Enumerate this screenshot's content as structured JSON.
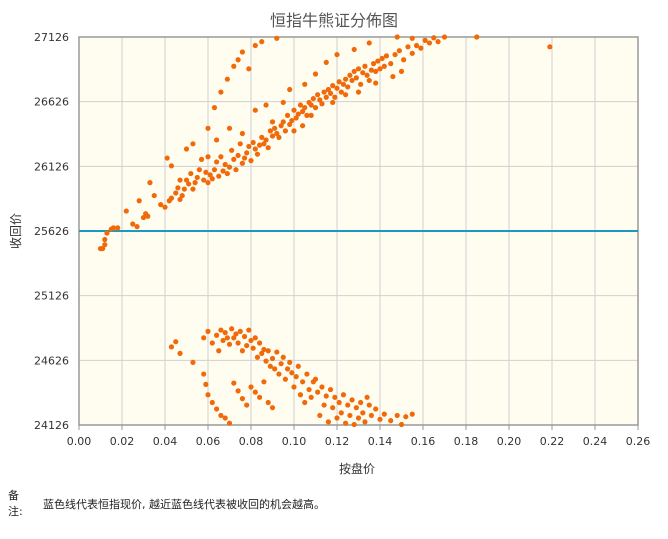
{
  "chart_data": {
    "type": "scatter",
    "title": "恒指牛熊证分佈图",
    "xlabel": "按盘价",
    "ylabel": "收回价",
    "xlim": [
      0.0,
      0.26
    ],
    "ylim": [
      24126,
      27126
    ],
    "x_ticks": [
      "0.00",
      "0.02",
      "0.04",
      "0.06",
      "0.08",
      "0.10",
      "0.12",
      "0.14",
      "0.16",
      "0.18",
      "0.20",
      "0.22",
      "0.24",
      "0.26"
    ],
    "y_ticks": [
      "24126",
      "24626",
      "25126",
      "25626",
      "26126",
      "26626",
      "27126"
    ],
    "grid": true,
    "reference_line": {
      "y": 25626,
      "color": "#1a9ac0"
    },
    "series_color": "#f06a0a",
    "series": [
      {
        "name": "",
        "points": [
          [
            0.01,
            25490
          ],
          [
            0.011,
            25490
          ],
          [
            0.012,
            25520
          ],
          [
            0.012,
            25560
          ],
          [
            0.013,
            25610
          ],
          [
            0.015,
            25640
          ],
          [
            0.016,
            25650
          ],
          [
            0.018,
            25650
          ],
          [
            0.022,
            25780
          ],
          [
            0.025,
            25680
          ],
          [
            0.027,
            25660
          ],
          [
            0.028,
            25860
          ],
          [
            0.03,
            25730
          ],
          [
            0.031,
            25760
          ],
          [
            0.032,
            25740
          ],
          [
            0.033,
            26000
          ],
          [
            0.035,
            25900
          ],
          [
            0.038,
            25830
          ],
          [
            0.04,
            25810
          ],
          [
            0.041,
            26190
          ],
          [
            0.042,
            25860
          ],
          [
            0.043,
            25880
          ],
          [
            0.045,
            25920
          ],
          [
            0.046,
            25960
          ],
          [
            0.047,
            25870
          ],
          [
            0.048,
            25900
          ],
          [
            0.049,
            25950
          ],
          [
            0.05,
            26020
          ],
          [
            0.051,
            25990
          ],
          [
            0.052,
            26070
          ],
          [
            0.053,
            25950
          ],
          [
            0.054,
            26000
          ],
          [
            0.055,
            26040
          ],
          [
            0.056,
            26100
          ],
          [
            0.058,
            26020
          ],
          [
            0.059,
            26080
          ],
          [
            0.06,
            26000
          ],
          [
            0.061,
            26060
          ],
          [
            0.062,
            26030
          ],
          [
            0.063,
            26100
          ],
          [
            0.064,
            26160
          ],
          [
            0.065,
            26050
          ],
          [
            0.066,
            26200
          ],
          [
            0.067,
            26090
          ],
          [
            0.068,
            26140
          ],
          [
            0.069,
            26070
          ],
          [
            0.07,
            26120
          ],
          [
            0.071,
            26250
          ],
          [
            0.072,
            26180
          ],
          [
            0.073,
            26100
          ],
          [
            0.074,
            26210
          ],
          [
            0.075,
            26300
          ],
          [
            0.076,
            26150
          ],
          [
            0.077,
            26190
          ],
          [
            0.078,
            26230
          ],
          [
            0.079,
            26280
          ],
          [
            0.08,
            26170
          ],
          [
            0.081,
            26310
          ],
          [
            0.082,
            26260
          ],
          [
            0.083,
            26220
          ],
          [
            0.084,
            26290
          ],
          [
            0.085,
            26350
          ],
          [
            0.086,
            26300
          ],
          [
            0.087,
            26330
          ],
          [
            0.088,
            26270
          ],
          [
            0.089,
            26400
          ],
          [
            0.09,
            26360
          ],
          [
            0.091,
            26420
          ],
          [
            0.092,
            26380
          ],
          [
            0.093,
            26350
          ],
          [
            0.094,
            26440
          ],
          [
            0.095,
            26470
          ],
          [
            0.096,
            26400
          ],
          [
            0.097,
            26520
          ],
          [
            0.098,
            26450
          ],
          [
            0.099,
            26480
          ],
          [
            0.1,
            26560
          ],
          [
            0.101,
            26500
          ],
          [
            0.102,
            26530
          ],
          [
            0.103,
            26600
          ],
          [
            0.104,
            26550
          ],
          [
            0.105,
            26580
          ],
          [
            0.106,
            26520
          ],
          [
            0.107,
            26620
          ],
          [
            0.108,
            26600
          ],
          [
            0.109,
            26650
          ],
          [
            0.11,
            26580
          ],
          [
            0.111,
            26680
          ],
          [
            0.112,
            26640
          ],
          [
            0.113,
            26610
          ],
          [
            0.114,
            26700
          ],
          [
            0.115,
            26660
          ],
          [
            0.116,
            26720
          ],
          [
            0.117,
            26690
          ],
          [
            0.118,
            26750
          ],
          [
            0.119,
            26660
          ],
          [
            0.12,
            26730
          ],
          [
            0.121,
            26780
          ],
          [
            0.122,
            26700
          ],
          [
            0.123,
            26760
          ],
          [
            0.124,
            26800
          ],
          [
            0.125,
            26740
          ],
          [
            0.126,
            26830
          ],
          [
            0.127,
            26790
          ],
          [
            0.128,
            26860
          ],
          [
            0.129,
            26810
          ],
          [
            0.13,
            26880
          ],
          [
            0.131,
            26760
          ],
          [
            0.132,
            26850
          ],
          [
            0.133,
            26900
          ],
          [
            0.134,
            26830
          ],
          [
            0.135,
            26790
          ],
          [
            0.136,
            26870
          ],
          [
            0.137,
            26920
          ],
          [
            0.138,
            26860
          ],
          [
            0.139,
            26940
          ],
          [
            0.14,
            26880
          ],
          [
            0.141,
            26960
          ],
          [
            0.142,
            26900
          ],
          [
            0.143,
            26980
          ],
          [
            0.145,
            26920
          ],
          [
            0.147,
            26990
          ],
          [
            0.149,
            27020
          ],
          [
            0.151,
            26950
          ],
          [
            0.153,
            27050
          ],
          [
            0.155,
            27000
          ],
          [
            0.157,
            27060
          ],
          [
            0.159,
            27040
          ],
          [
            0.161,
            27100
          ],
          [
            0.163,
            27080
          ],
          [
            0.165,
            27120
          ],
          [
            0.167,
            27090
          ],
          [
            0.17,
            27126
          ],
          [
            0.185,
            27126
          ],
          [
            0.219,
            27050
          ],
          [
            0.043,
            26130
          ],
          [
            0.047,
            26020
          ],
          [
            0.05,
            26260
          ],
          [
            0.053,
            26300
          ],
          [
            0.057,
            26180
          ],
          [
            0.06,
            26420
          ],
          [
            0.063,
            26580
          ],
          [
            0.066,
            26700
          ],
          [
            0.069,
            26800
          ],
          [
            0.072,
            26900
          ],
          [
            0.074,
            26950
          ],
          [
            0.076,
            27010
          ],
          [
            0.079,
            26880
          ],
          [
            0.082,
            27060
          ],
          [
            0.085,
            27090
          ],
          [
            0.092,
            27116
          ],
          [
            0.098,
            26720
          ],
          [
            0.105,
            26760
          ],
          [
            0.11,
            26840
          ],
          [
            0.115,
            26930
          ],
          [
            0.12,
            26990
          ],
          [
            0.128,
            27030
          ],
          [
            0.135,
            27080
          ],
          [
            0.148,
            27126
          ],
          [
            0.155,
            27116
          ],
          [
            0.06,
            26200
          ],
          [
            0.064,
            26330
          ],
          [
            0.07,
            26420
          ],
          [
            0.076,
            26380
          ],
          [
            0.082,
            26560
          ],
          [
            0.087,
            26600
          ],
          [
            0.09,
            26470
          ],
          [
            0.095,
            26620
          ],
          [
            0.1,
            26400
          ],
          [
            0.104,
            26440
          ],
          [
            0.108,
            26520
          ],
          [
            0.118,
            26620
          ],
          [
            0.124,
            26680
          ],
          [
            0.13,
            26700
          ],
          [
            0.138,
            26770
          ],
          [
            0.146,
            26820
          ],
          [
            0.15,
            26860
          ],
          [
            0.043,
            24730
          ],
          [
            0.045,
            24770
          ],
          [
            0.047,
            24680
          ],
          [
            0.053,
            24610
          ],
          [
            0.058,
            24800
          ],
          [
            0.06,
            24850
          ],
          [
            0.062,
            24760
          ],
          [
            0.064,
            24820
          ],
          [
            0.065,
            24700
          ],
          [
            0.066,
            24860
          ],
          [
            0.067,
            24780
          ],
          [
            0.068,
            24840
          ],
          [
            0.069,
            24800
          ],
          [
            0.07,
            24750
          ],
          [
            0.071,
            24870
          ],
          [
            0.072,
            24800
          ],
          [
            0.073,
            24830
          ],
          [
            0.074,
            24760
          ],
          [
            0.075,
            24850
          ],
          [
            0.076,
            24700
          ],
          [
            0.077,
            24810
          ],
          [
            0.078,
            24740
          ],
          [
            0.079,
            24860
          ],
          [
            0.08,
            24780
          ],
          [
            0.081,
            24720
          ],
          [
            0.082,
            24800
          ],
          [
            0.083,
            24650
          ],
          [
            0.084,
            24760
          ],
          [
            0.085,
            24680
          ],
          [
            0.086,
            24710
          ],
          [
            0.087,
            24620
          ],
          [
            0.088,
            24700
          ],
          [
            0.089,
            24580
          ],
          [
            0.09,
            24640
          ],
          [
            0.091,
            24560
          ],
          [
            0.092,
            24690
          ],
          [
            0.093,
            24520
          ],
          [
            0.094,
            24600
          ],
          [
            0.095,
            24650
          ],
          [
            0.096,
            24480
          ],
          [
            0.097,
            24560
          ],
          [
            0.098,
            24610
          ],
          [
            0.099,
            24530
          ],
          [
            0.1,
            24420
          ],
          [
            0.101,
            24500
          ],
          [
            0.102,
            24580
          ],
          [
            0.103,
            24360
          ],
          [
            0.104,
            24460
          ],
          [
            0.105,
            24300
          ],
          [
            0.106,
            24520
          ],
          [
            0.107,
            24400
          ],
          [
            0.108,
            24340
          ],
          [
            0.109,
            24460
          ],
          [
            0.11,
            24480
          ],
          [
            0.111,
            24380
          ],
          [
            0.112,
            24200
          ],
          [
            0.113,
            24420
          ],
          [
            0.114,
            24280
          ],
          [
            0.115,
            24350
          ],
          [
            0.116,
            24150
          ],
          [
            0.117,
            24400
          ],
          [
            0.118,
            24260
          ],
          [
            0.119,
            24340
          ],
          [
            0.12,
            24180
          ],
          [
            0.121,
            24300
          ],
          [
            0.122,
            24220
          ],
          [
            0.123,
            24360
          ],
          [
            0.124,
            24140
          ],
          [
            0.125,
            24280
          ],
          [
            0.126,
            24200
          ],
          [
            0.127,
            24320
          ],
          [
            0.128,
            24130
          ],
          [
            0.129,
            24260
          ],
          [
            0.13,
            24180
          ],
          [
            0.131,
            24300
          ],
          [
            0.132,
            24220
          ],
          [
            0.133,
            24150
          ],
          [
            0.134,
            24340
          ],
          [
            0.135,
            24280
          ],
          [
            0.136,
            24200
          ],
          [
            0.138,
            24250
          ],
          [
            0.14,
            24170
          ],
          [
            0.142,
            24210
          ],
          [
            0.145,
            24160
          ],
          [
            0.148,
            24200
          ],
          [
            0.15,
            24130
          ],
          [
            0.152,
            24190
          ],
          [
            0.155,
            24210
          ],
          [
            0.058,
            24520
          ],
          [
            0.059,
            24440
          ],
          [
            0.06,
            24360
          ],
          [
            0.062,
            24300
          ],
          [
            0.064,
            24250
          ],
          [
            0.066,
            24200
          ],
          [
            0.068,
            24180
          ],
          [
            0.07,
            24140
          ],
          [
            0.072,
            24450
          ],
          [
            0.074,
            24390
          ],
          [
            0.076,
            24330
          ],
          [
            0.078,
            24280
          ],
          [
            0.08,
            24420
          ],
          [
            0.082,
            24380
          ],
          [
            0.084,
            24340
          ],
          [
            0.086,
            24460
          ],
          [
            0.088,
            24300
          ],
          [
            0.09,
            24260
          ]
        ]
      }
    ]
  },
  "note": {
    "label": "备\n注:",
    "text": "蓝色线代表恒指现价, 越近蓝色线代表被收回的机会越高。"
  },
  "colors": {
    "plot_bg": "#fffcf0",
    "grid": "#d0d0d0",
    "axis": "#999999",
    "title": "#555555"
  }
}
